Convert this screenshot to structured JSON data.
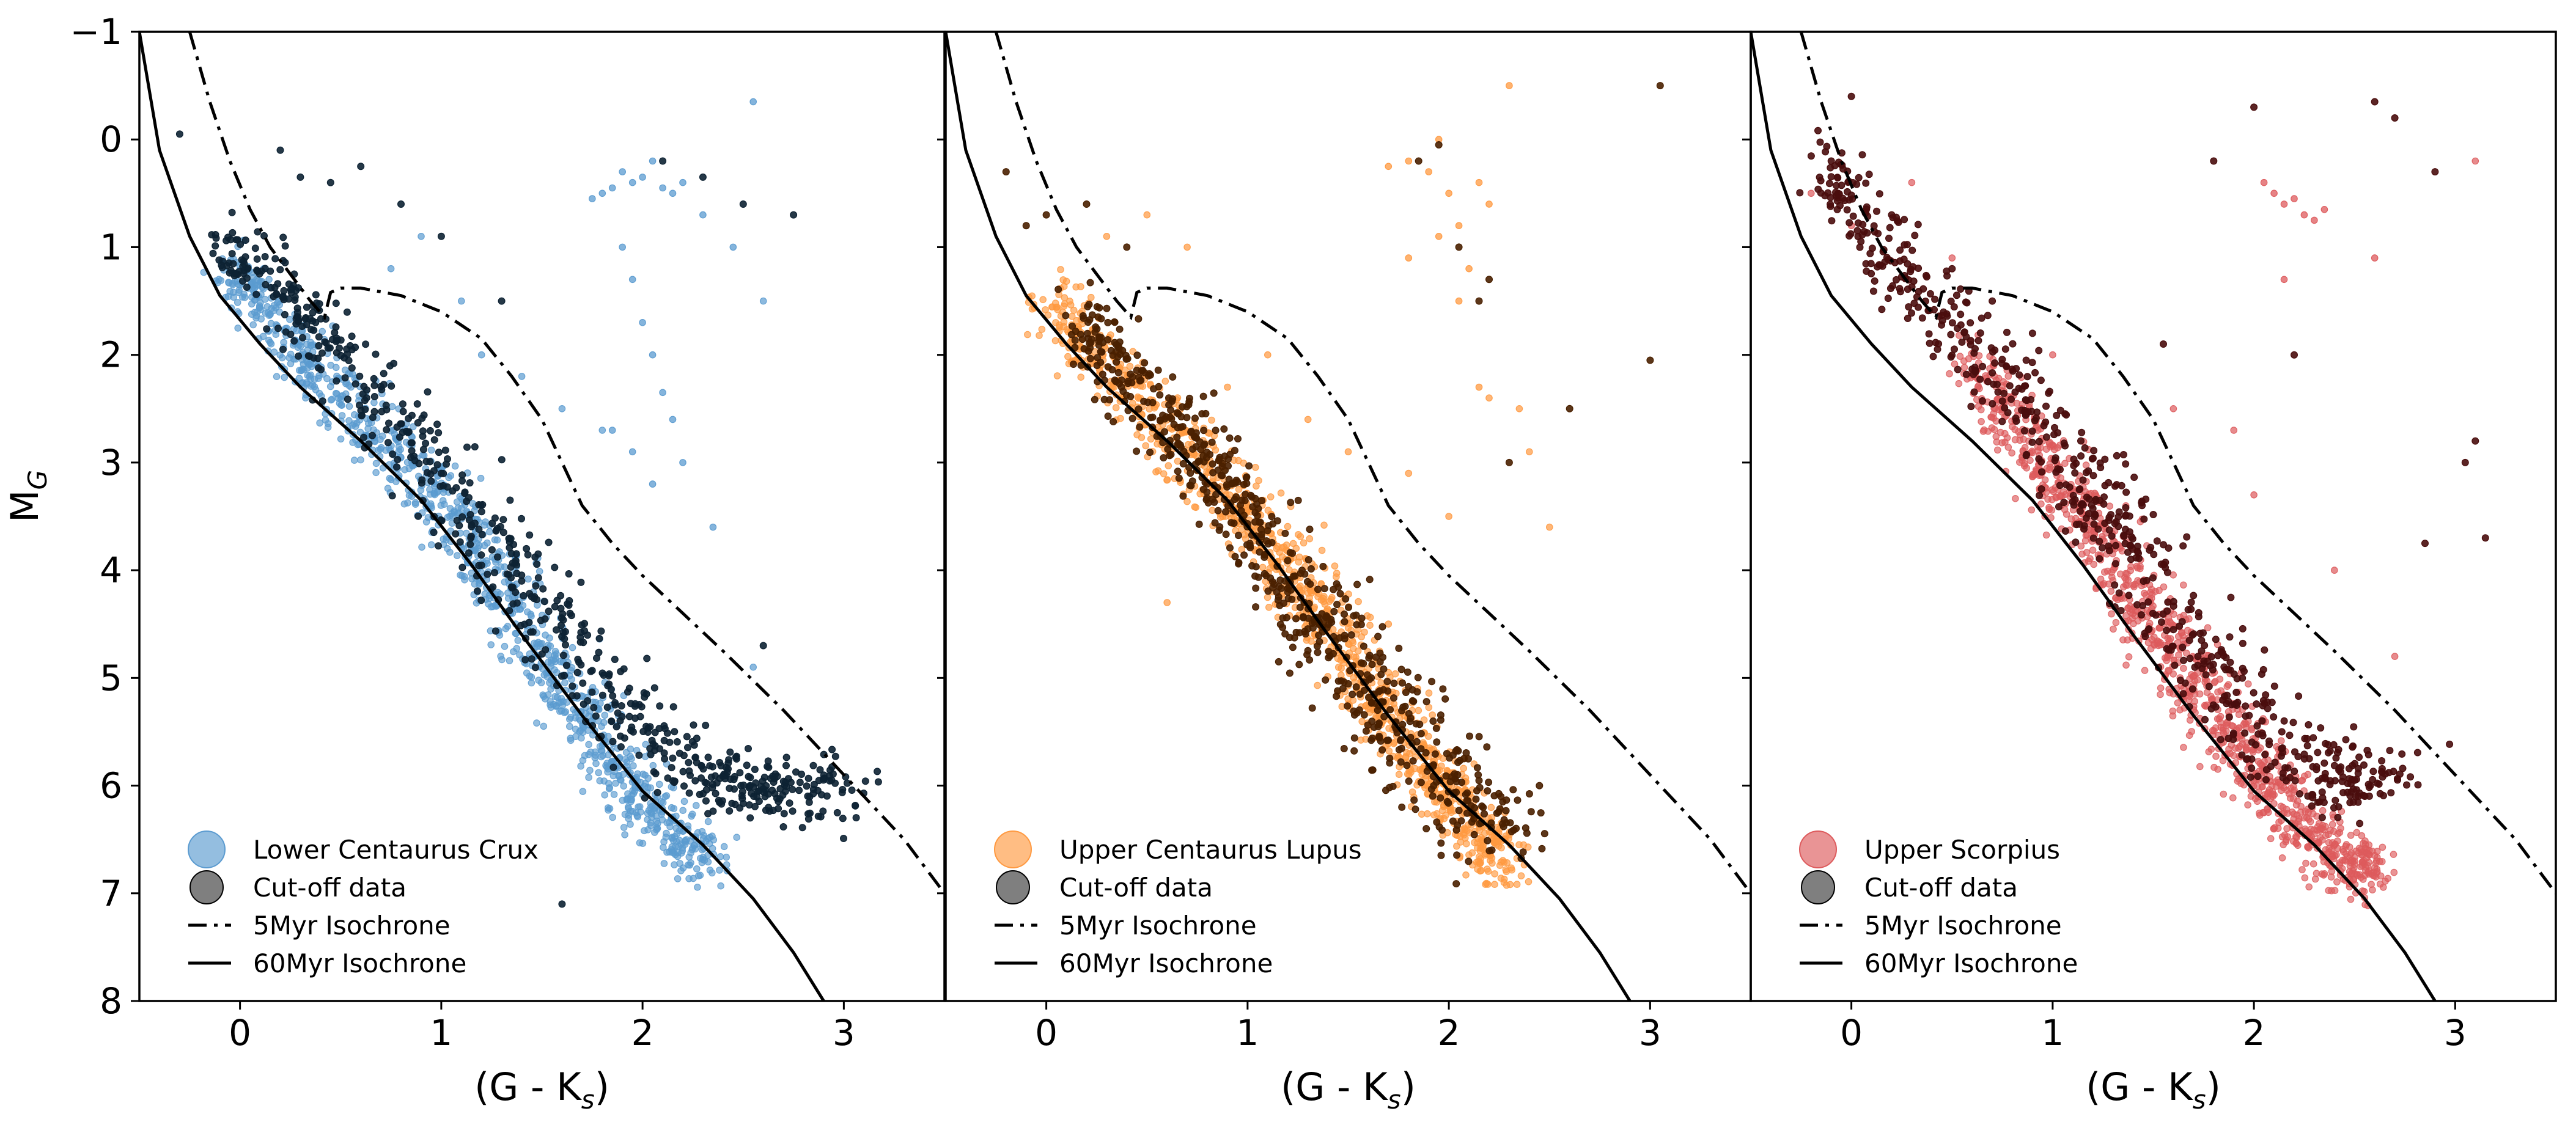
{
  "colors": {
    "lcc": "#5b9bd0",
    "ucl": "#ff9940",
    "usco": "#dd5a5c",
    "lcc_cut": "#0d2233",
    "ucl_cut": "#4a2000",
    "usco_cut": "#4a0d0d",
    "isochrone": "#000000"
  },
  "chart_data": {
    "type": "scatter",
    "layout": "3 panels side by side, shared y axis (inverted)",
    "xlim": [
      -0.5,
      3.5
    ],
    "ylim": [
      8,
      -1
    ],
    "y_inverted": true,
    "xlabel": "(G - K",
    "xlabel_sub": "s",
    "xlabel_close": ")",
    "ylabel": "M",
    "ylabel_sub": "G",
    "xticks": [
      "0",
      "1",
      "2",
      "3"
    ],
    "xtick_values": [
      0,
      1,
      2,
      3
    ],
    "yticks": [
      "−1",
      "0",
      "1",
      "2",
      "3",
      "4",
      "5",
      "6",
      "7",
      "8"
    ],
    "ytick_values": [
      -1,
      0,
      1,
      2,
      3,
      4,
      5,
      6,
      7,
      8
    ],
    "legend_placement": "lower-left",
    "isochrones": {
      "5Myr": {
        "label": "5Myr Isochrone",
        "style": "dash-dot",
        "x": [
          -0.25,
          -0.15,
          -0.05,
          0.05,
          0.15,
          0.25,
          0.35,
          0.42,
          0.45,
          0.5,
          0.6,
          0.8,
          1.0,
          1.2,
          1.35,
          1.5,
          1.6,
          1.7,
          1.85,
          2.0,
          2.2,
          2.4,
          2.7,
          3.0,
          3.3,
          3.5
        ],
        "y": [
          -1.0,
          -0.35,
          0.2,
          0.65,
          1.0,
          1.25,
          1.5,
          1.65,
          1.42,
          1.38,
          1.38,
          1.45,
          1.6,
          1.85,
          2.2,
          2.6,
          3.0,
          3.4,
          3.75,
          4.05,
          4.4,
          4.75,
          5.3,
          5.9,
          6.5,
          7.0
        ]
      },
      "60Myr": {
        "label": "60Myr Isochrone",
        "style": "solid",
        "x": [
          -0.5,
          -0.4,
          -0.25,
          -0.1,
          0.1,
          0.3,
          0.6,
          0.9,
          1.15,
          1.4,
          1.7,
          2.0,
          2.3,
          2.55,
          2.75,
          2.9
        ],
        "y": [
          -1.0,
          0.1,
          0.9,
          1.45,
          1.9,
          2.3,
          2.8,
          3.35,
          3.95,
          4.6,
          5.35,
          6.05,
          6.55,
          7.05,
          7.55,
          8.0
        ]
      }
    },
    "panels": [
      {
        "name": "Lower Centaurus Crux",
        "members": {
          "label": "Lower Centaurus Crux",
          "color_key": "lcc",
          "main_sequence": {
            "x": [
              -0.05,
              0.1,
              0.35,
              0.6,
              0.85,
              1.1,
              1.3,
              1.5,
              1.7,
              1.9,
              2.1,
              2.35
            ],
            "y": [
              1.1,
              1.6,
              2.1,
              2.6,
              3.05,
              3.55,
              4.15,
              4.75,
              5.35,
              5.9,
              6.35,
              6.75
            ]
          },
          "giants": {
            "x": [
              1.75,
              1.8,
              1.85,
              1.9,
              1.95,
              2.0,
              2.05,
              2.1,
              2.15,
              2.2,
              2.3,
              2.45,
              2.55,
              1.9,
              1.95,
              2.0,
              2.05,
              2.1,
              2.15,
              1.85,
              1.95,
              2.05,
              2.2,
              2.35
            ],
            "y": [
              0.55,
              0.5,
              0.45,
              0.3,
              0.4,
              0.35,
              0.2,
              0.45,
              0.5,
              0.4,
              0.7,
              1.0,
              -0.35,
              1.0,
              1.3,
              1.7,
              2.0,
              2.35,
              2.6,
              2.7,
              2.9,
              3.2,
              3.0,
              3.6
            ]
          },
          "scatter_points": {
            "x": [
              0.75,
              0.9,
              1.1,
              1.2,
              1.4,
              1.6,
              1.8,
              2.6,
              2.55
            ],
            "y": [
              1.2,
              0.9,
              1.5,
              2.0,
              2.2,
              2.5,
              2.7,
              1.5,
              4.9
            ]
          },
          "count_shape": "dense band"
        },
        "cutoff": {
          "label": "Cut-off data",
          "color_key": "lcc_cut",
          "band": {
            "x": [
              -0.1,
              0.1,
              0.35,
              0.6,
              0.9,
              1.15,
              1.4,
              1.65,
              1.9,
              2.15,
              2.4,
              2.7,
              2.9
            ],
            "y": [
              1.1,
              1.45,
              1.95,
              2.5,
              3.1,
              3.75,
              4.3,
              4.95,
              5.45,
              5.9,
              6.1,
              6.2,
              6.1
            ]
          },
          "extras": {
            "x": [
              -0.3,
              0.2,
              0.3,
              0.45,
              0.6,
              0.8,
              1.0,
              1.3,
              2.1,
              2.3,
              2.5,
              2.75,
              1.6,
              2.6
            ],
            "y": [
              -0.05,
              0.1,
              0.35,
              0.4,
              0.25,
              0.6,
              0.9,
              1.5,
              0.2,
              0.35,
              0.6,
              0.7,
              7.1,
              4.7
            ]
          }
        }
      },
      {
        "name": "Upper Centaurus Lupus",
        "members": {
          "label": "Upper Centaurus Lupus",
          "color_key": "ucl",
          "main_sequence": {
            "x": [
              0.0,
              0.2,
              0.45,
              0.7,
              0.95,
              1.15,
              1.35,
              1.55,
              1.75,
              1.95,
              2.15,
              2.3
            ],
            "y": [
              1.5,
              1.95,
              2.4,
              2.9,
              3.35,
              3.85,
              4.4,
              4.95,
              5.5,
              6.0,
              6.45,
              6.8
            ]
          },
          "giants": {
            "x": [
              1.7,
              1.8,
              1.9,
              1.95,
              2.0,
              2.05,
              2.1,
              2.15,
              2.2,
              1.8,
              1.95,
              2.05,
              2.15,
              2.3
            ],
            "y": [
              0.25,
              0.2,
              0.3,
              0.0,
              0.5,
              0.8,
              1.2,
              0.4,
              0.6,
              1.1,
              0.9,
              1.5,
              2.3,
              -0.5
            ]
          },
          "scatter_points": {
            "x": [
              0.3,
              0.5,
              0.7,
              0.9,
              1.1,
              1.3,
              1.5,
              1.8,
              2.0,
              2.2,
              2.4,
              2.5,
              0.6,
              1.7,
              2.35
            ],
            "y": [
              0.9,
              0.7,
              1.0,
              2.3,
              2.0,
              2.6,
              2.9,
              3.1,
              3.5,
              2.4,
              2.9,
              3.6,
              4.3,
              4.5,
              2.5
            ]
          },
          "count_shape": "dense band"
        },
        "cutoff": {
          "label": "Cut-off data",
          "color_key": "ucl_cut",
          "band": {
            "x": [
              0.1,
              0.3,
              0.55,
              0.8,
              1.0,
              1.2,
              1.4,
              1.6,
              1.8,
              2.0,
              2.2
            ],
            "y": [
              1.8,
              2.2,
              2.7,
              3.2,
              3.75,
              4.3,
              4.8,
              5.3,
              5.75,
              6.2,
              6.6
            ]
          },
          "extras": {
            "x": [
              -0.2,
              -0.1,
              0.0,
              0.2,
              0.4,
              1.85,
              1.95,
              2.05,
              2.15,
              2.2,
              2.3,
              3.0,
              3.05,
              2.6,
              2.45
            ],
            "y": [
              0.3,
              0.8,
              0.7,
              0.6,
              1.0,
              0.2,
              0.05,
              1.0,
              1.5,
              1.3,
              3.0,
              2.05,
              -0.5,
              2.5,
              6.0
            ]
          }
        }
      },
      {
        "name": "Upper Scorpius",
        "members": {
          "label": "Upper Scorpius",
          "color_key": "usco",
          "main_sequence": {
            "x": [
              0.6,
              0.8,
              1.0,
              1.2,
              1.4,
              1.6,
              1.8,
              2.0,
              2.2,
              2.4,
              2.6
            ],
            "y": [
              2.1,
              2.6,
              3.1,
              3.6,
              4.2,
              4.75,
              5.3,
              5.8,
              6.3,
              6.7,
              6.8
            ]
          },
          "giants": {
            "x": [
              2.05,
              2.1,
              2.15,
              2.2,
              2.25,
              2.3,
              2.35,
              2.6,
              2.15
            ],
            "y": [
              0.4,
              0.5,
              0.6,
              0.55,
              0.7,
              0.75,
              0.65,
              1.1,
              1.3
            ]
          },
          "scatter_points": {
            "x": [
              -0.2,
              0.0,
              0.3,
              0.5,
              1.0,
              1.6,
              1.9,
              2.0,
              2.4,
              2.7,
              3.1
            ],
            "y": [
              0.5,
              0.8,
              0.4,
              1.1,
              2.0,
              2.5,
              2.7,
              3.3,
              4.0,
              4.8,
              0.2
            ]
          },
          "count_shape": "dense band"
        },
        "cutoff": {
          "label": "Cut-off data",
          "color_key": "usco_cut",
          "band": {
            "x": [
              -0.2,
              0.0,
              0.2,
              0.45,
              0.7,
              0.95,
              1.15,
              1.35,
              1.55,
              1.75,
              1.95,
              2.2,
              2.45,
              2.6
            ],
            "y": [
              0.3,
              0.8,
              1.3,
              1.8,
              2.3,
              2.85,
              3.4,
              3.9,
              4.45,
              5.0,
              5.5,
              5.9,
              6.1,
              6.0
            ]
          },
          "extras": {
            "x": [
              -0.1,
              0.0,
              0.2,
              0.5,
              0.7,
              0.9,
              1.55,
              1.8,
              2.0,
              2.2,
              2.6,
              2.7,
              2.9,
              3.05,
              3.1,
              3.15,
              2.85,
              2.5
            ],
            "y": [
              0.2,
              -0.4,
              0.7,
              1.2,
              1.5,
              1.8,
              1.9,
              0.2,
              -0.3,
              2.0,
              -0.35,
              -0.2,
              0.3,
              3.0,
              2.8,
              3.7,
              3.75,
              5.95
            ]
          }
        }
      }
    ]
  }
}
